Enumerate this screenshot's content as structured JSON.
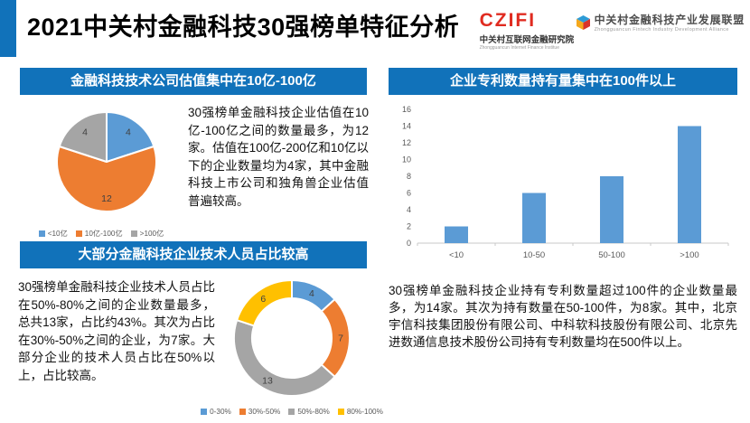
{
  "header": {
    "title": "2021中关村金融科技30强榜单特征分析",
    "accent_color": "#1172BA",
    "logo_institute": {
      "wordmark": "CZIFI",
      "name_cn": "中关村互联网金融研究院",
      "name_en": "Zhongguancun Internet Finance Institue"
    },
    "logo_alliance": {
      "name_cn": "中关村金融科技产业发展联盟",
      "name_en": "Zhongguancun Fintech Industry Development Alliance"
    }
  },
  "sections": {
    "valuation": {
      "title": "金融科技技术公司估值集中在10亿-100亿",
      "body": "30强榜单金融科技企业估值在10亿-100亿之间的数量最多，为12家。估值在100亿-200亿和10亿以下的企业数量均为4家，其中金融科技上市公司和独角兽企业估值普遍较高。"
    },
    "tech_staff": {
      "title": "大部分金融科技企业技术人员占比较高",
      "body": "30强榜单金融科技企业技术人员占比在50%-80%之间的企业数量最多，总共13家，占比约43%。其次为占比在30%-50%之间的企业，为7家。大部分企业的技术人员占比在50%以上，占比较高。"
    },
    "patents": {
      "title": "企业专利数量持有量集中在100件以上",
      "body": "30强榜单金融科技企业持有专利数量超过100件的企业数量最多，为14家。其次为持有数量在50-100件，为8家。其中，北京宇信科技集团股份有限公司、中科软科技股份有限公司、北京先进数通信息技术股份公司持有专利数量均在500件以上。"
    }
  },
  "chart_data": [
    {
      "type": "pie",
      "title": "金融科技技术公司估值集中在10亿-100亿",
      "categories": [
        "<10亿",
        "10亿-100亿",
        ">100亿"
      ],
      "values": [
        4,
        12,
        4
      ],
      "colors": [
        "#5B9BD5",
        "#ED7D31",
        "#A5A5A5"
      ],
      "donut": false,
      "legend_position": "bottom",
      "data_labels": [
        "4",
        "12",
        "4"
      ]
    },
    {
      "type": "pie",
      "title": "大部分金融科技企业技术人员占比较高",
      "categories": [
        "0-30%",
        "30%-50%",
        "50%-80%",
        "80%-100%"
      ],
      "values": [
        4,
        7,
        13,
        6
      ],
      "colors": [
        "#5B9BD5",
        "#ED7D31",
        "#A5A5A5",
        "#FFC000"
      ],
      "donut": true,
      "legend_position": "bottom",
      "data_labels": [
        "4",
        "7",
        "13",
        "6"
      ]
    },
    {
      "type": "bar",
      "title": "企业专利数量持有量集中在100件以上",
      "categories": [
        "<10",
        "10-50",
        "50-100",
        ">100"
      ],
      "values": [
        2,
        6,
        8,
        14
      ],
      "color": "#5B9BD5",
      "xlabel": "",
      "ylabel": "",
      "ylim": [
        0,
        16
      ],
      "yticks": [
        0,
        2,
        4,
        6,
        8,
        10,
        12,
        14,
        16
      ],
      "grid": false,
      "legend_position": "none"
    }
  ]
}
